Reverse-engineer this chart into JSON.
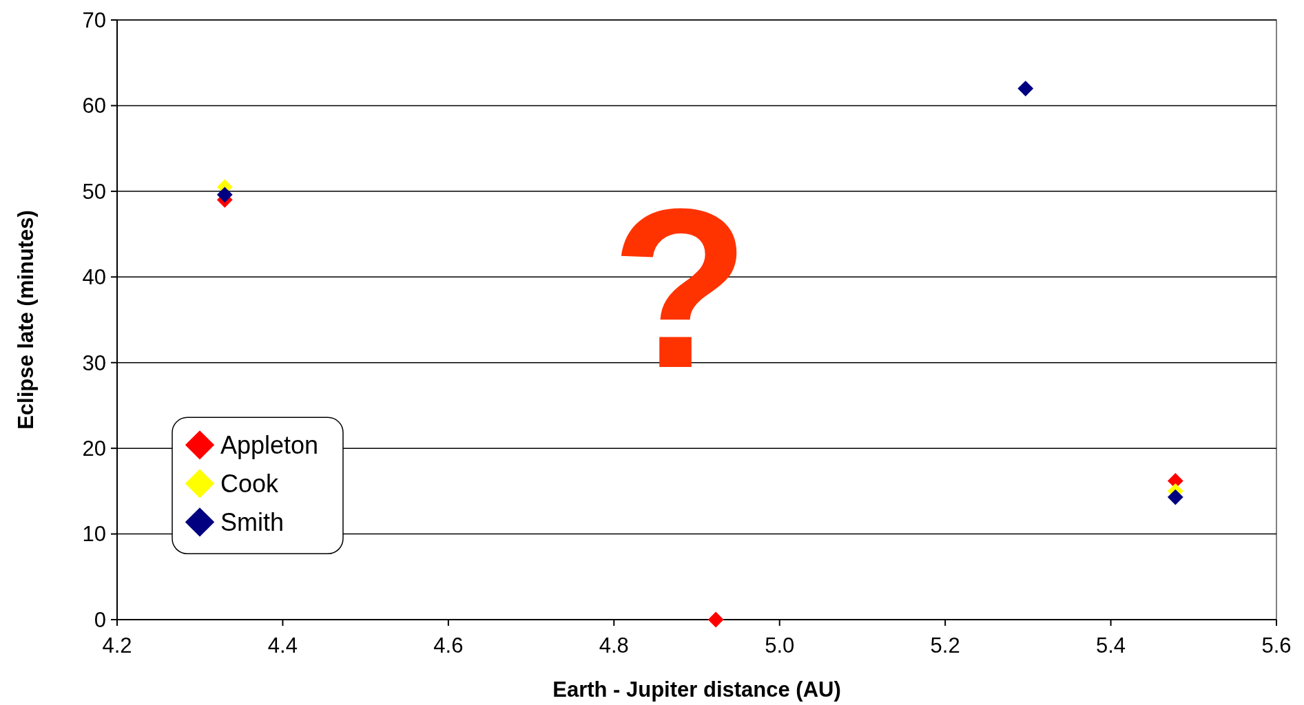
{
  "chart_data": {
    "type": "scatter",
    "xlabel": "Earth - Jupiter distance (AU)",
    "ylabel": "Eclipse late (minutes)",
    "xlim": [
      4.2,
      5.6
    ],
    "xticks": [
      {
        "value": 4.2,
        "label": "4.2"
      },
      {
        "value": 4.4,
        "label": "4.4"
      },
      {
        "value": 4.6,
        "label": "4.6"
      },
      {
        "value": 4.8,
        "label": "4.8"
      },
      {
        "value": 5.0,
        "label": "5.0"
      },
      {
        "value": 5.2,
        "label": "5.2"
      },
      {
        "value": 5.4,
        "label": "5.4"
      },
      {
        "value": 5.6,
        "label": "5.6"
      }
    ],
    "ylim": [
      0,
      70
    ],
    "yticks": [
      0,
      10,
      20,
      30,
      40,
      50,
      60,
      70
    ],
    "grid": "y",
    "legend": "bottom left",
    "marker": "diamond",
    "annotations": [
      "?"
    ],
    "series": [
      {
        "name": "Appleton",
        "color": "#ff0000",
        "x": [
          4.33,
          4.923,
          5.478
        ],
        "values": [
          49.0,
          0,
          16.2
        ]
      },
      {
        "name": "Cook",
        "color": "#ffff00",
        "x": [
          4.33,
          5.478
        ],
        "values": [
          50.5,
          15.0
        ]
      },
      {
        "name": "Smith",
        "color": "#000080",
        "x": [
          4.33,
          5.297,
          5.478
        ],
        "values": [
          49.6,
          62.0,
          14.3
        ]
      }
    ]
  }
}
